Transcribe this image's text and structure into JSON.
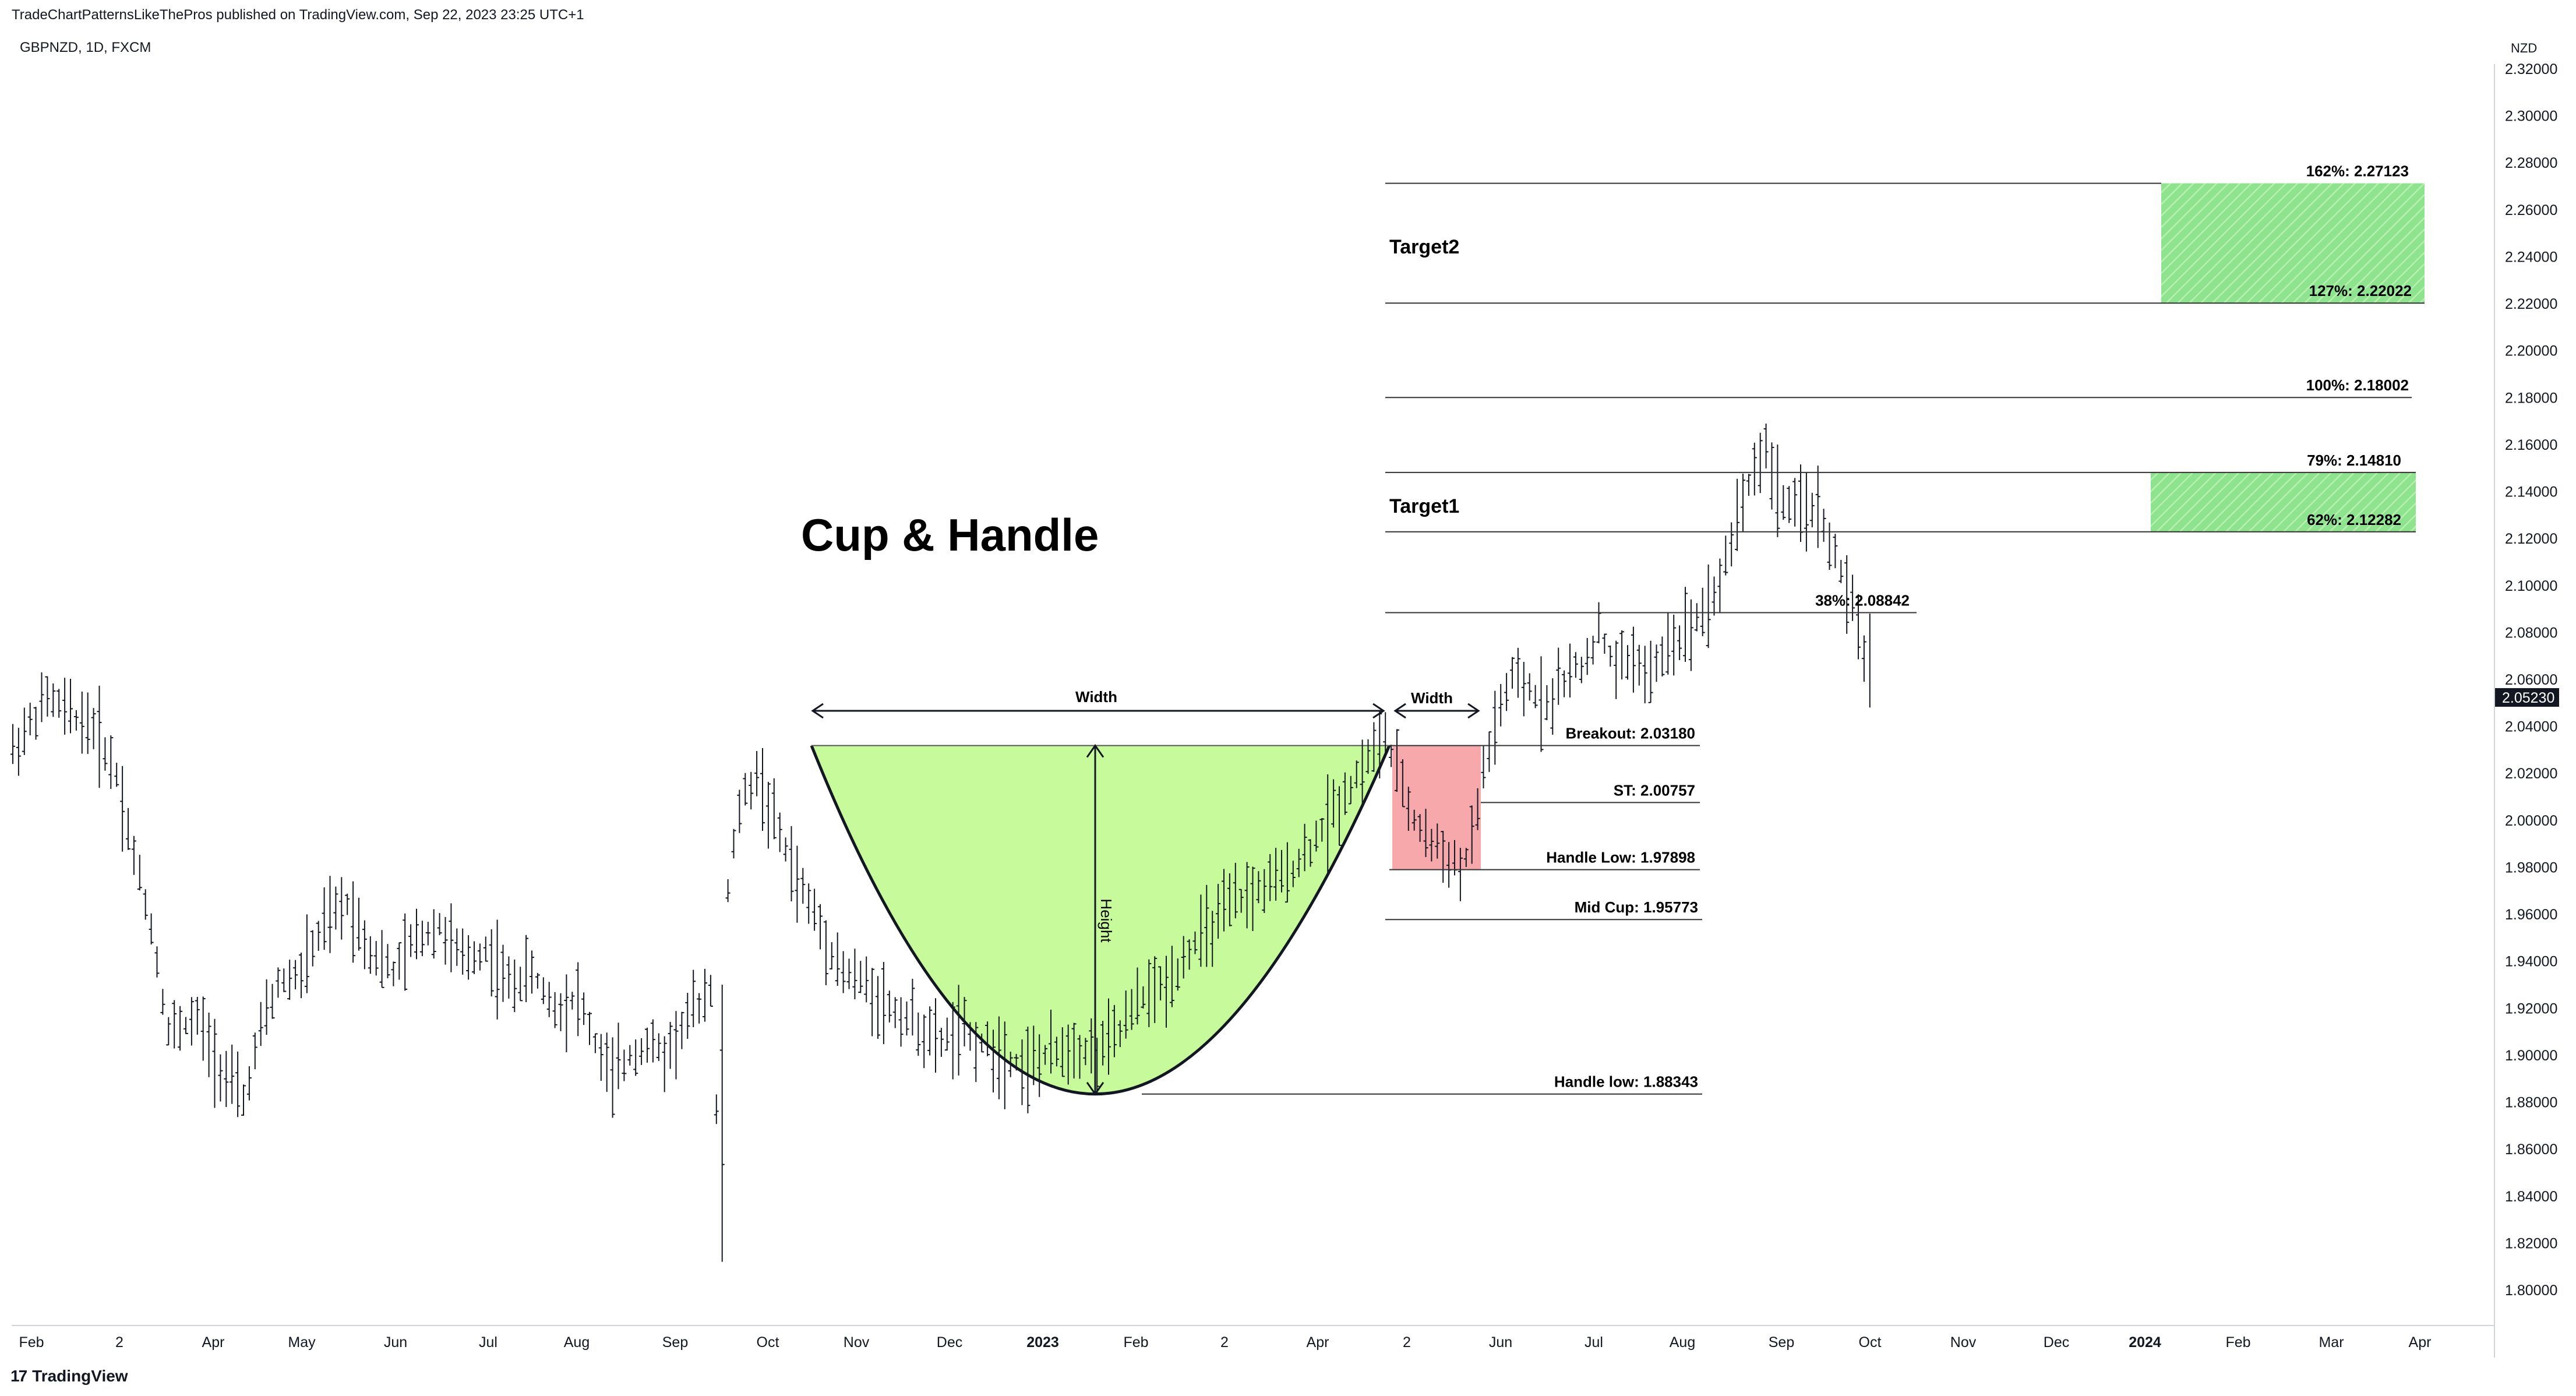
{
  "header": {
    "published": "TradeChartPatternsLikeThePros published on TradingView.com, Sep 22, 2023 23:25 UTC+1",
    "symbol": "GBPNZD, 1D, FXCM",
    "currency": "NZD",
    "logo_text": "TradingView",
    "logo_mark": "17"
  },
  "colors": {
    "cup_fill": "#c7fa9b",
    "handle_fill": "#f7a8aa",
    "target_fill": "#8ee38e",
    "last_price_bg": "#131722",
    "line": "#131722"
  },
  "chart_data": {
    "type": "ohlc",
    "title": "Cup & Handle",
    "ylim": [
      1.79,
      2.32
    ],
    "y_ticks": [
      "2.32000",
      "2.30000",
      "2.28000",
      "2.26000",
      "2.24000",
      "2.22000",
      "2.20000",
      "2.18000",
      "2.16000",
      "2.14000",
      "2.12000",
      "2.10000",
      "2.08000",
      "2.06000",
      "2.04000",
      "2.02000",
      "2.00000",
      "1.98000",
      "1.96000",
      "1.94000",
      "1.92000",
      "1.90000",
      "1.88000",
      "1.86000",
      "1.84000",
      "1.82000",
      "1.80000"
    ],
    "x_ticks": [
      "Feb",
      "2",
      "Apr",
      "May",
      "Jun",
      "Jul",
      "Aug",
      "Sep",
      "Oct",
      "Nov",
      "Dec",
      "2023",
      "Feb",
      "2",
      "Apr",
      "2",
      "Jun",
      "Jul",
      "Aug",
      "Sep",
      "Oct",
      "Nov",
      "Dec",
      "2024",
      "Feb",
      "Mar",
      "Apr"
    ],
    "bold_x_ticks": [
      "2023",
      "2024"
    ],
    "last_price": "2.05230",
    "price_path": [
      [
        0,
        2.03
      ],
      [
        6,
        2.052
      ],
      [
        10,
        2.045
      ],
      [
        14,
        2.04
      ],
      [
        18,
        2.02
      ],
      [
        21,
        1.985
      ],
      [
        24,
        1.955
      ],
      [
        27,
        1.91
      ],
      [
        32,
        1.915
      ],
      [
        37,
        1.89
      ],
      [
        40,
        1.88
      ],
      [
        43,
        1.91
      ],
      [
        46,
        1.93
      ],
      [
        50,
        1.935
      ],
      [
        54,
        1.955
      ],
      [
        58,
        1.965
      ],
      [
        62,
        1.945
      ],
      [
        66,
        1.935
      ],
      [
        70,
        1.95
      ],
      [
        74,
        1.955
      ],
      [
        78,
        1.94
      ],
      [
        82,
        1.945
      ],
      [
        86,
        1.93
      ],
      [
        90,
        1.935
      ],
      [
        94,
        1.92
      ],
      [
        98,
        1.925
      ],
      [
        101,
        1.905
      ],
      [
        104,
        1.89
      ],
      [
        107,
        1.9
      ],
      [
        110,
        1.905
      ],
      [
        113,
        1.9
      ],
      [
        117,
        1.915
      ],
      [
        121,
        1.93
      ],
      [
        123,
        1.82
      ],
      [
        124,
        1.97
      ],
      [
        126,
        2.005
      ],
      [
        129,
        2.02
      ],
      [
        132,
        2.0
      ],
      [
        136,
        1.975
      ],
      [
        140,
        1.955
      ],
      [
        144,
        1.935
      ],
      [
        148,
        1.93
      ],
      [
        152,
        1.92
      ],
      [
        156,
        1.915
      ],
      [
        160,
        1.905
      ],
      [
        164,
        1.91
      ],
      [
        168,
        1.905
      ],
      [
        172,
        1.9
      ],
      [
        176,
        1.895
      ],
      [
        180,
        1.9
      ],
      [
        184,
        1.905
      ],
      [
        188,
        1.9
      ],
      [
        192,
        1.91
      ],
      [
        196,
        1.925
      ],
      [
        200,
        1.93
      ],
      [
        204,
        1.945
      ],
      [
        208,
        1.955
      ],
      [
        212,
        1.965
      ],
      [
        216,
        1.97
      ],
      [
        220,
        1.975
      ],
      [
        224,
        1.985
      ],
      [
        228,
        2.0
      ],
      [
        232,
        2.015
      ],
      [
        236,
        2.03
      ],
      [
        238,
        2.035
      ],
      [
        240,
        2.02
      ],
      [
        243,
        2.0
      ],
      [
        246,
        1.99
      ],
      [
        249,
        1.985
      ],
      [
        251,
        1.978
      ],
      [
        253,
        1.99
      ],
      [
        255,
        2.02
      ],
      [
        257,
        2.04
      ],
      [
        260,
        2.06
      ],
      [
        263,
        2.055
      ],
      [
        266,
        2.05
      ],
      [
        269,
        2.06
      ],
      [
        272,
        2.065
      ],
      [
        275,
        2.08
      ],
      [
        278,
        2.065
      ],
      [
        281,
        2.07
      ],
      [
        284,
        2.06
      ],
      [
        287,
        2.075
      ],
      [
        290,
        2.08
      ],
      [
        293,
        2.09
      ],
      [
        296,
        2.1
      ],
      [
        299,
        2.13
      ],
      [
        302,
        2.15
      ],
      [
        304,
        2.158
      ],
      [
        306,
        2.14
      ],
      [
        309,
        2.13
      ],
      [
        312,
        2.135
      ],
      [
        315,
        2.12
      ],
      [
        317,
        2.105
      ],
      [
        319,
        2.09
      ],
      [
        321,
        2.07
      ],
      [
        322,
        2.0523
      ]
    ],
    "annotations": {
      "cup_label": "Width",
      "handle_label": "Width",
      "height_label": "Height",
      "target1": "Target1",
      "target2": "Target2"
    },
    "levels": [
      {
        "label": "162%: 2.27123",
        "value": 2.27123
      },
      {
        "label": "127%: 2.22022",
        "value": 2.22022
      },
      {
        "label": "100%: 2.18002",
        "value": 2.18002
      },
      {
        "label": "79%: 2.14810",
        "value": 2.1481
      },
      {
        "label": "62%: 2.12282",
        "value": 2.12282
      },
      {
        "label": "38%: 2.08842",
        "value": 2.08842
      },
      {
        "label": "Breakout: 2.03180",
        "value": 2.0318
      },
      {
        "label": "ST: 2.00757",
        "value": 2.00757
      },
      {
        "label": "Handle Low: 1.97898",
        "value": 1.97898
      },
      {
        "label": "Mid Cup: 1.95773",
        "value": 1.95773
      },
      {
        "label": "Handle low: 1.88343",
        "value": 1.88343
      }
    ]
  }
}
